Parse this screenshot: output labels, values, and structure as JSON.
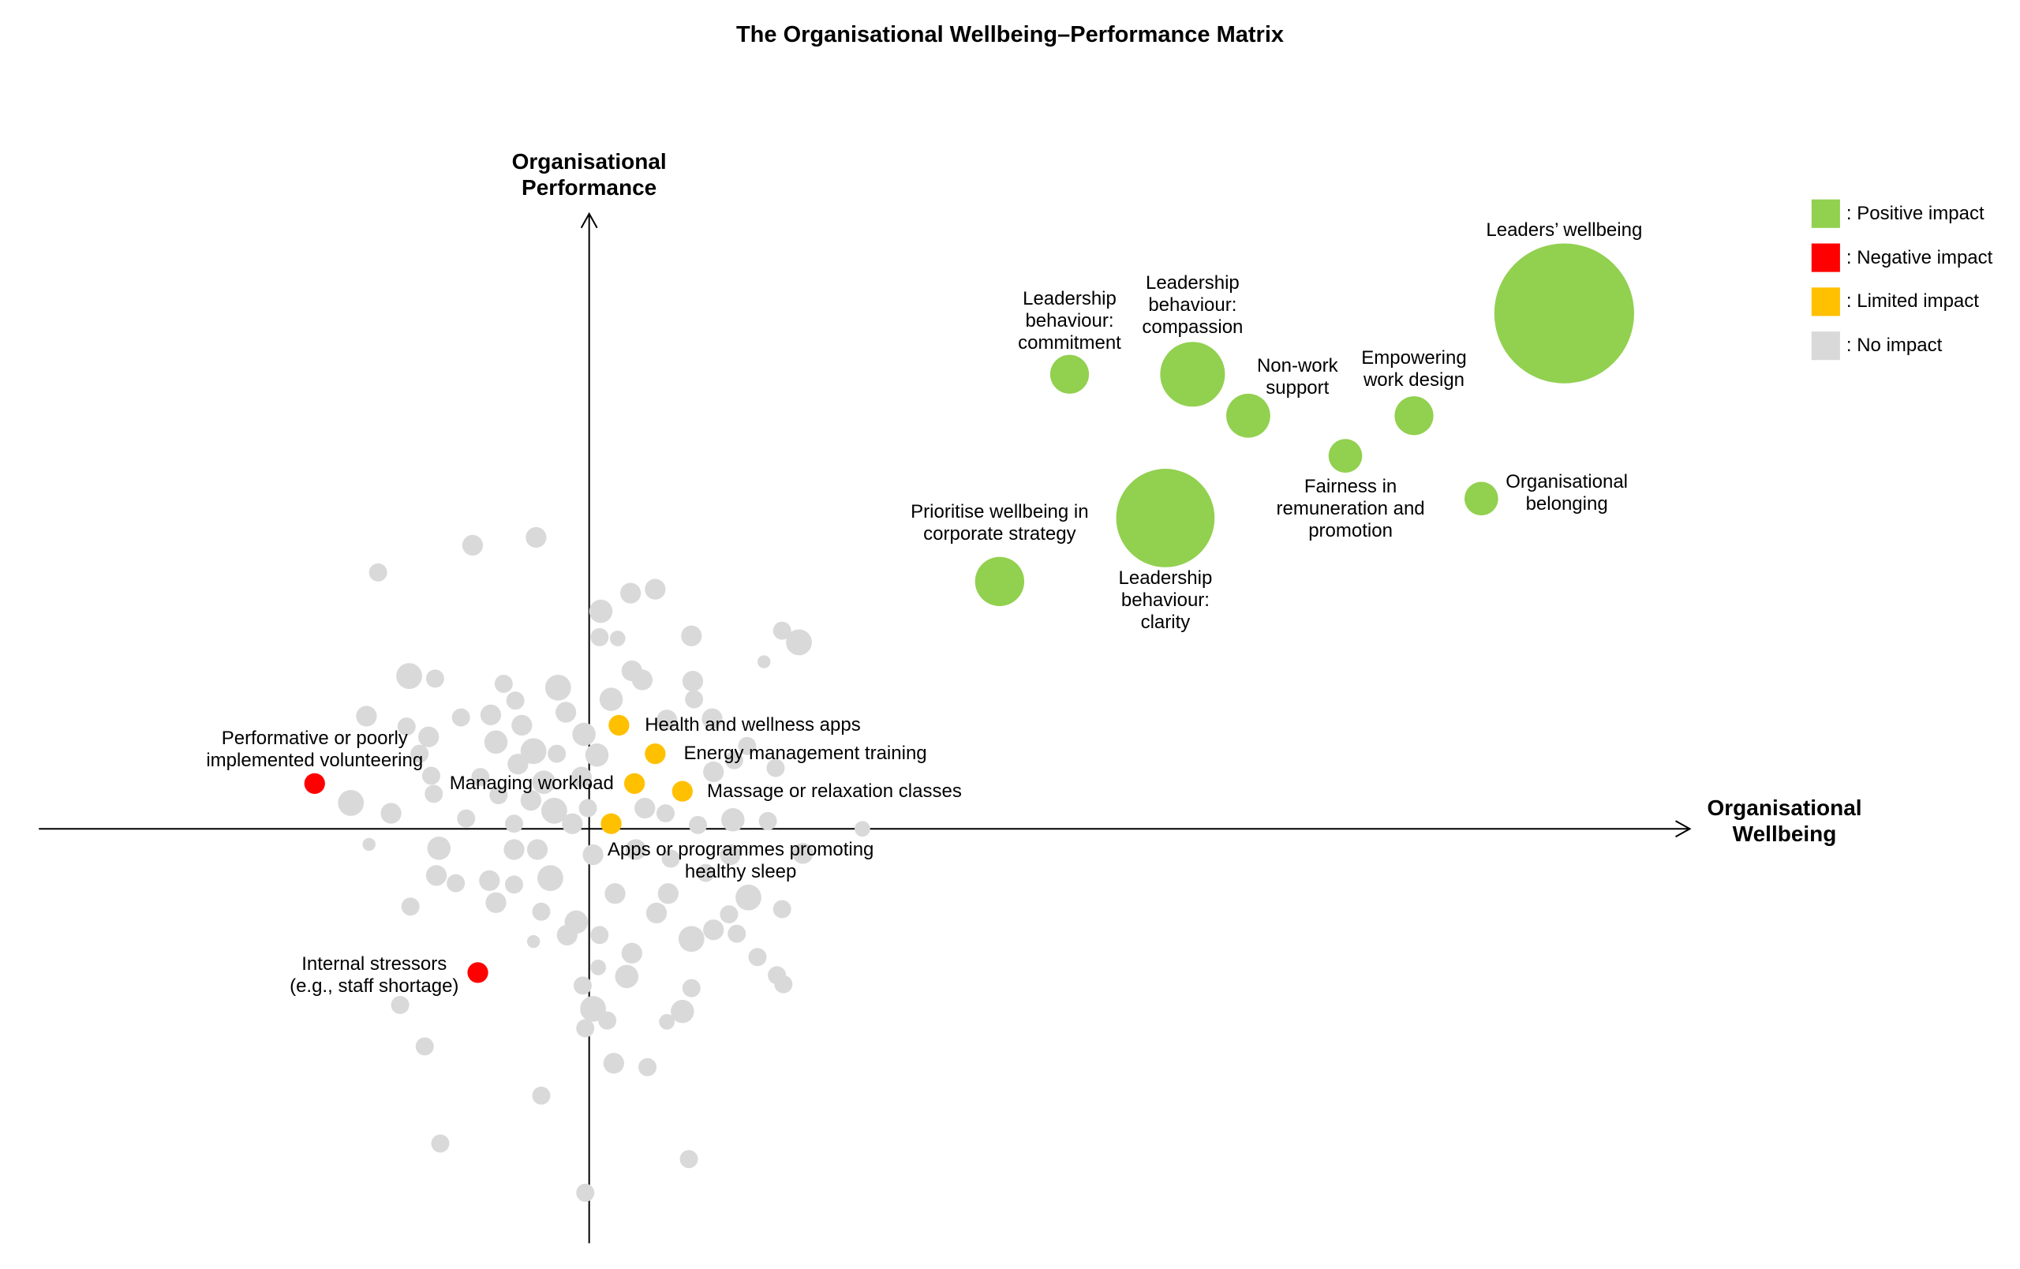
{
  "chart_data": {
    "type": "bubble",
    "title": "The Organisational Wellbeing–Performance Matrix",
    "x_label": "Organisational\nWellbeing",
    "y_label": "Organisational\nPerformance",
    "xlim": [
      -425,
      850
    ],
    "ylim": [
      -320,
      475
    ],
    "legend": "top-right",
    "series": [
      {
        "name": ": Positive impact",
        "color": "#92d050",
        "x": [
          753,
          371,
          466,
          509,
          637,
          584,
          689,
          445,
          317
        ],
        "y": [
          398,
          351,
          351,
          319,
          319,
          288,
          255,
          240,
          191
        ],
        "sizes": [
          54,
          15,
          25,
          17,
          15,
          13,
          13,
          38,
          19
        ],
        "labels": [
          "Leaders’ wellbeing",
          "Leadership\nbehaviour:\ncommitment",
          "Leadership\nbehaviour:\ncompassion",
          "Non-work\nsupport",
          "Empowering\nwork design",
          "Fairness in\nremuneration and\npromotion",
          "Organisational\nbelonging",
          "Leadership\nbehaviour:\nclarity",
          "Prioritise wellbeing in\ncorporate strategy"
        ]
      },
      {
        "name": ": Negative impact",
        "color": "#ff0000",
        "x": [
          -212,
          -86
        ],
        "y": [
          35,
          -111
        ],
        "sizes": [
          8,
          8
        ],
        "labels": [
          "Performative or poorly\nimplemented volunteering",
          "Internal stressors\n(e.g., staff shortage)"
        ]
      },
      {
        "name": ": Limited impact",
        "color": "#ffc000",
        "x": [
          23,
          51,
          35,
          72,
          17
        ],
        "y": [
          80,
          58,
          35,
          29,
          4
        ],
        "sizes": [
          8,
          8,
          8,
          8,
          8
        ],
        "labels": [
          "Health and wellness apps",
          "Energy management training",
          "Managing workload",
          "Massage or relaxation classes",
          "Apps or programmes promoting\nhealthy sleep"
        ]
      },
      {
        "name": ": No impact",
        "color": "#d9d9d9",
        "x": [
          -41,
          -90,
          -163,
          32,
          51,
          9,
          8,
          22,
          79,
          149,
          162,
          135,
          -139,
          -119,
          -66,
          -24,
          33,
          41,
          80,
          17,
          -57,
          -18,
          81,
          -172,
          -99,
          -76,
          -52,
          -4,
          60,
          95,
          -141,
          -124,
          -72,
          -43,
          -25,
          6,
          122,
          -131,
          -55,
          112,
          144,
          -122,
          -84,
          -35,
          -6,
          96,
          -184,
          -153,
          -120,
          -70,
          -45,
          -27,
          -1,
          43,
          59,
          111,
          -95,
          -58,
          -13,
          84,
          138,
          211,
          -170,
          -116,
          -58,
          -40,
          3,
          36,
          63,
          109,
          165,
          -118,
          -77,
          -30,
          20,
          90,
          -103,
          -58,
          61,
          123,
          -138,
          -72,
          -37,
          -10,
          52,
          149,
          108,
          -17,
          8,
          79,
          96,
          114,
          -43,
          33,
          130,
          7,
          29,
          145,
          150,
          -5,
          79,
          -146,
          3,
          72,
          14,
          60,
          -3,
          -127,
          19,
          45,
          -37,
          -115,
          77,
          -3
        ],
        "y": [
          225,
          219,
          198,
          182,
          185,
          168,
          148,
          147,
          149,
          153,
          144,
          129,
          118,
          116,
          112,
          109,
          122,
          115,
          114,
          100,
          99,
          90,
          100,
          87,
          86,
          88,
          80,
          73,
          84,
          85,
          79,
          71,
          67,
          60,
          58,
          57,
          64,
          58,
          50,
          53,
          47,
          41,
          40,
          36,
          40,
          44,
          20,
          12,
          27,
          26,
          22,
          14,
          16,
          16,
          12,
          7,
          8,
          4,
          4,
          3,
          6,
          0,
          -12,
          -15,
          -16,
          -16,
          -20,
          -16,
          -23,
          -20,
          -19,
          -36,
          -40,
          -38,
          -50,
          -34,
          -42,
          -43,
          -50,
          -53,
          -60,
          -57,
          -64,
          -72,
          -65,
          -62,
          -66,
          -82,
          -82,
          -85,
          -78,
          -81,
          -87,
          -96,
          -99,
          -107,
          -114,
          -113,
          -120,
          -121,
          -123,
          -136,
          -139,
          -141,
          -148,
          -149,
          -154,
          -168,
          -181,
          -184,
          -206,
          -243,
          -255,
          -281
        ],
        "sizes": [
          8,
          8,
          7,
          8,
          8,
          9,
          7,
          6,
          8,
          7,
          10,
          5,
          10,
          7,
          7,
          10,
          8,
          8,
          8,
          9,
          7,
          8,
          7,
          8,
          7,
          8,
          8,
          9,
          8,
          8,
          7,
          8,
          9,
          10,
          7,
          9,
          7,
          7,
          8,
          7,
          7,
          7,
          7,
          9,
          8,
          8,
          10,
          8,
          7,
          7,
          8,
          10,
          7,
          8,
          7,
          9,
          7,
          7,
          8,
          7,
          7,
          6,
          5,
          9,
          8,
          8,
          8,
          8,
          7,
          8,
          8,
          8,
          8,
          10,
          8,
          7,
          7,
          7,
          8,
          10,
          7,
          8,
          7,
          9,
          8,
          7,
          7,
          8,
          7,
          10,
          8,
          7,
          5,
          8,
          7,
          6,
          9,
          7,
          7,
          7,
          7,
          7,
          10,
          9,
          7,
          6,
          7,
          7,
          8,
          7,
          7,
          7,
          7,
          7
        ]
      }
    ]
  }
}
